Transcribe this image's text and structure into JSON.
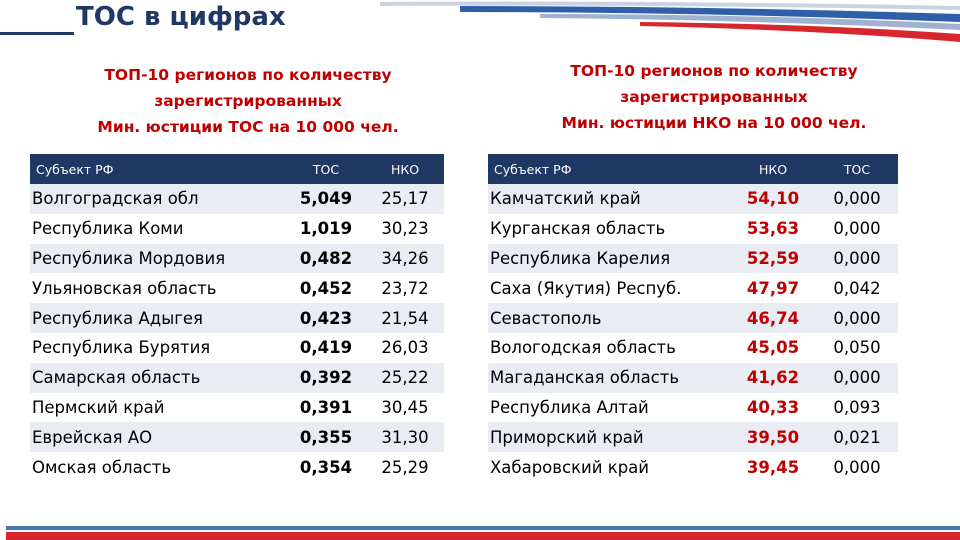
{
  "page": {
    "title": "ТОС в цифрах"
  },
  "left": {
    "heading": [
      "ТОП-10 регионов по количеству",
      "зарегистрированных",
      "Мин. юстиции ТОС на 10 000 чел."
    ],
    "headers": [
      "Субъект РФ",
      "ТОС",
      "НКО"
    ],
    "rows": [
      [
        "Волгоградская обл",
        "5,049",
        "25,17"
      ],
      [
        "Республика Коми",
        "1,019",
        "30,23"
      ],
      [
        "Республика Мордовия",
        "0,482",
        "34,26"
      ],
      [
        "Ульяновская область",
        "0,452",
        "23,72"
      ],
      [
        "Республика Адыгея",
        "0,423",
        "21,54"
      ],
      [
        "Республика Бурятия",
        "0,419",
        "26,03"
      ],
      [
        "Самарская область",
        "0,392",
        "25,22"
      ],
      [
        "Пермский край",
        "0,391",
        "30,45"
      ],
      [
        "Еврейская АО",
        "0,355",
        "31,30"
      ],
      [
        "Омская область",
        "0,354",
        "25,29"
      ]
    ]
  },
  "right": {
    "heading": [
      "ТОП-10 регионов по количеству",
      "зарегистрированных",
      "Мин. юстиции НКО на 10 000 чел."
    ],
    "headers": [
      "Субъект РФ",
      "НКО",
      "ТОС"
    ],
    "rows": [
      [
        "Камчатский край",
        "54,10",
        "0,000"
      ],
      [
        "Курганская область",
        "53,63",
        "0,000"
      ],
      [
        "Республика Карелия",
        "52,59",
        "0,000"
      ],
      [
        "Саха (Якутия) Респуб.",
        "47,97",
        "0,042"
      ],
      [
        "Севастополь",
        "46,74",
        "0,000"
      ],
      [
        "Вологодская область",
        "45,05",
        "0,050"
      ],
      [
        "Магаданская область",
        "41,62",
        "0,000"
      ],
      [
        "Республика Алтай",
        "40,33",
        "0,093"
      ],
      [
        "Приморский край",
        "39,50",
        "0,021"
      ],
      [
        "Хабаровский край",
        "39,45",
        "0,000"
      ]
    ]
  },
  "colors": {
    "header_bg": "#1f3864",
    "heading_text": "#c00000",
    "row_stripe": "#e9ecf3",
    "flag_blue": "#2e5fa8",
    "flag_red": "#d8262e"
  }
}
